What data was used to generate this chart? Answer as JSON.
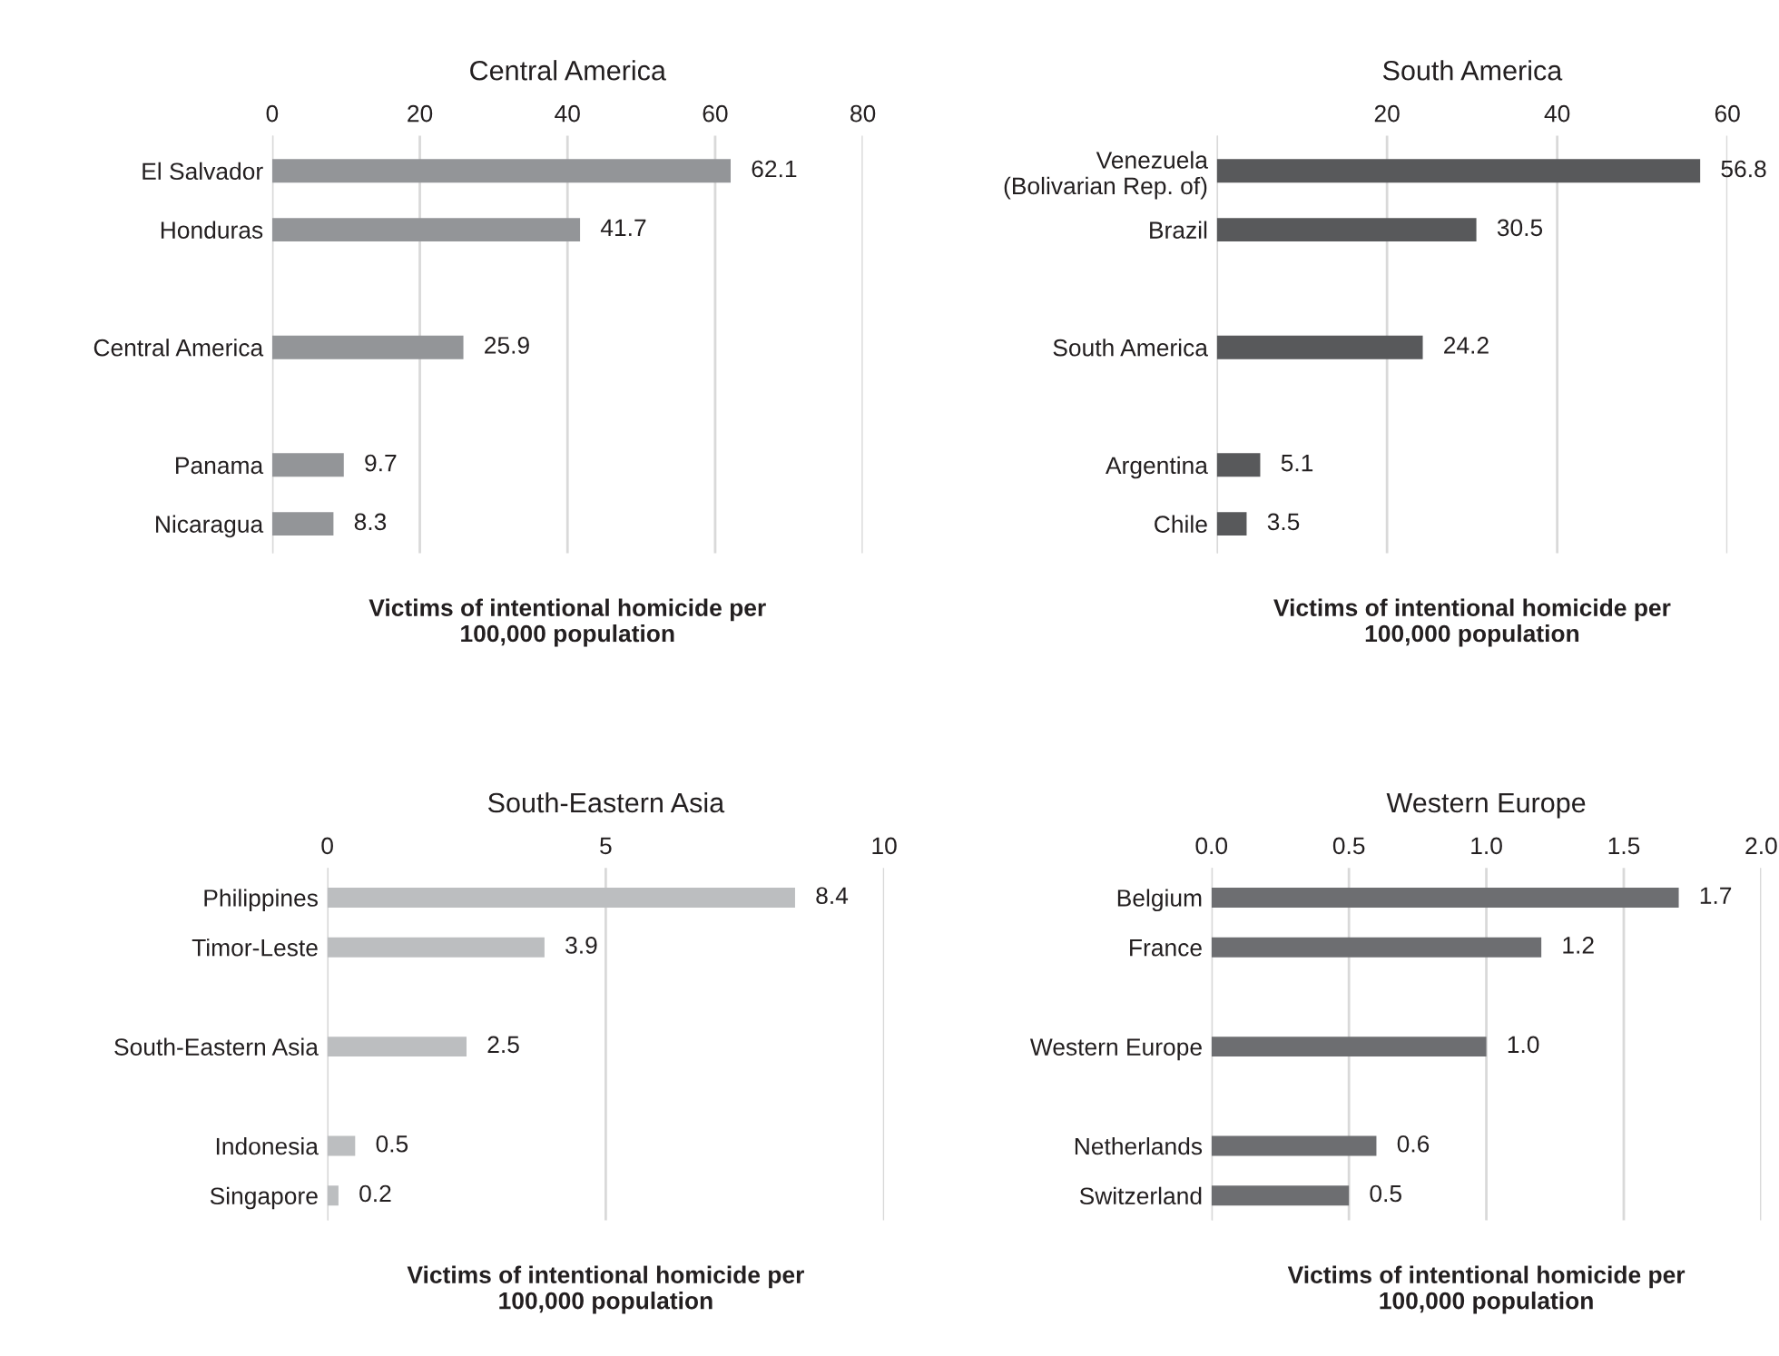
{
  "chart_data": [
    {
      "type": "bar",
      "orientation": "horizontal",
      "title": "Central America",
      "xlabel": "Victims of intentional homicide per\n100,000 population",
      "categories": [
        "El Salvador",
        "Honduras",
        null,
        "Central America",
        null,
        "Panama",
        "Nicaragua"
      ],
      "values": [
        62.1,
        41.7,
        null,
        25.9,
        null,
        9.7,
        8.3
      ],
      "color": "#939598",
      "xlim": [
        0,
        80
      ],
      "xticks": [
        0,
        20,
        40,
        60,
        80
      ],
      "grid": "x",
      "data_labels": true
    },
    {
      "type": "bar",
      "orientation": "horizontal",
      "title": "South America",
      "xlabel": "Victims of intentional homicide per\n100,000 population",
      "categories": [
        "Venezuela\n(Bolivarian Rep. of)",
        "Brazil",
        null,
        "South America",
        null,
        "Argentina",
        "Chile"
      ],
      "values": [
        56.8,
        30.5,
        null,
        24.2,
        null,
        5.1,
        3.5
      ],
      "color": "#58595b",
      "xlim": [
        0,
        60
      ],
      "xticks": [
        {
          "value": 0,
          "label": null
        },
        20,
        40,
        60
      ],
      "grid": "x",
      "data_labels": true
    },
    {
      "type": "bar",
      "orientation": "horizontal",
      "title": "South-Eastern Asia",
      "xlabel": "Victims of intentional homicide per\n100,000 population",
      "categories": [
        "Philippines",
        "Timor-Leste",
        null,
        "South-Eastern Asia",
        null,
        "Indonesia",
        "Singapore"
      ],
      "values": [
        8.4,
        3.9,
        null,
        2.5,
        null,
        0.5,
        0.2
      ],
      "color": "#bcbec0",
      "xlim": [
        0,
        10
      ],
      "xticks": [
        0,
        5,
        10
      ],
      "grid": "x",
      "data_labels": true
    },
    {
      "type": "bar",
      "orientation": "horizontal",
      "title": "Western Europe",
      "xlabel": "Victims of intentional homicide per\n100,000 population",
      "categories": [
        "Belgium",
        "France",
        null,
        "Western Europe",
        null,
        "Netherlands",
        "Switzerland"
      ],
      "values": [
        1.7,
        1.2,
        null,
        1.0,
        null,
        0.6,
        0.5
      ],
      "value_labels": [
        "1.7",
        "1.2",
        null,
        "1.0",
        null,
        "0.6",
        "0.5"
      ],
      "color": "#6d6e71",
      "xlim": [
        0,
        2
      ],
      "xticks": [
        {
          "value": 0,
          "label": "0.0"
        },
        {
          "value": 0.5,
          "label": "0.5"
        },
        {
          "value": 1,
          "label": "1.0"
        },
        {
          "value": 1.5,
          "label": "1.5"
        },
        {
          "value": 2,
          "label": "2.0"
        }
      ],
      "grid": "x"
    }
  ]
}
